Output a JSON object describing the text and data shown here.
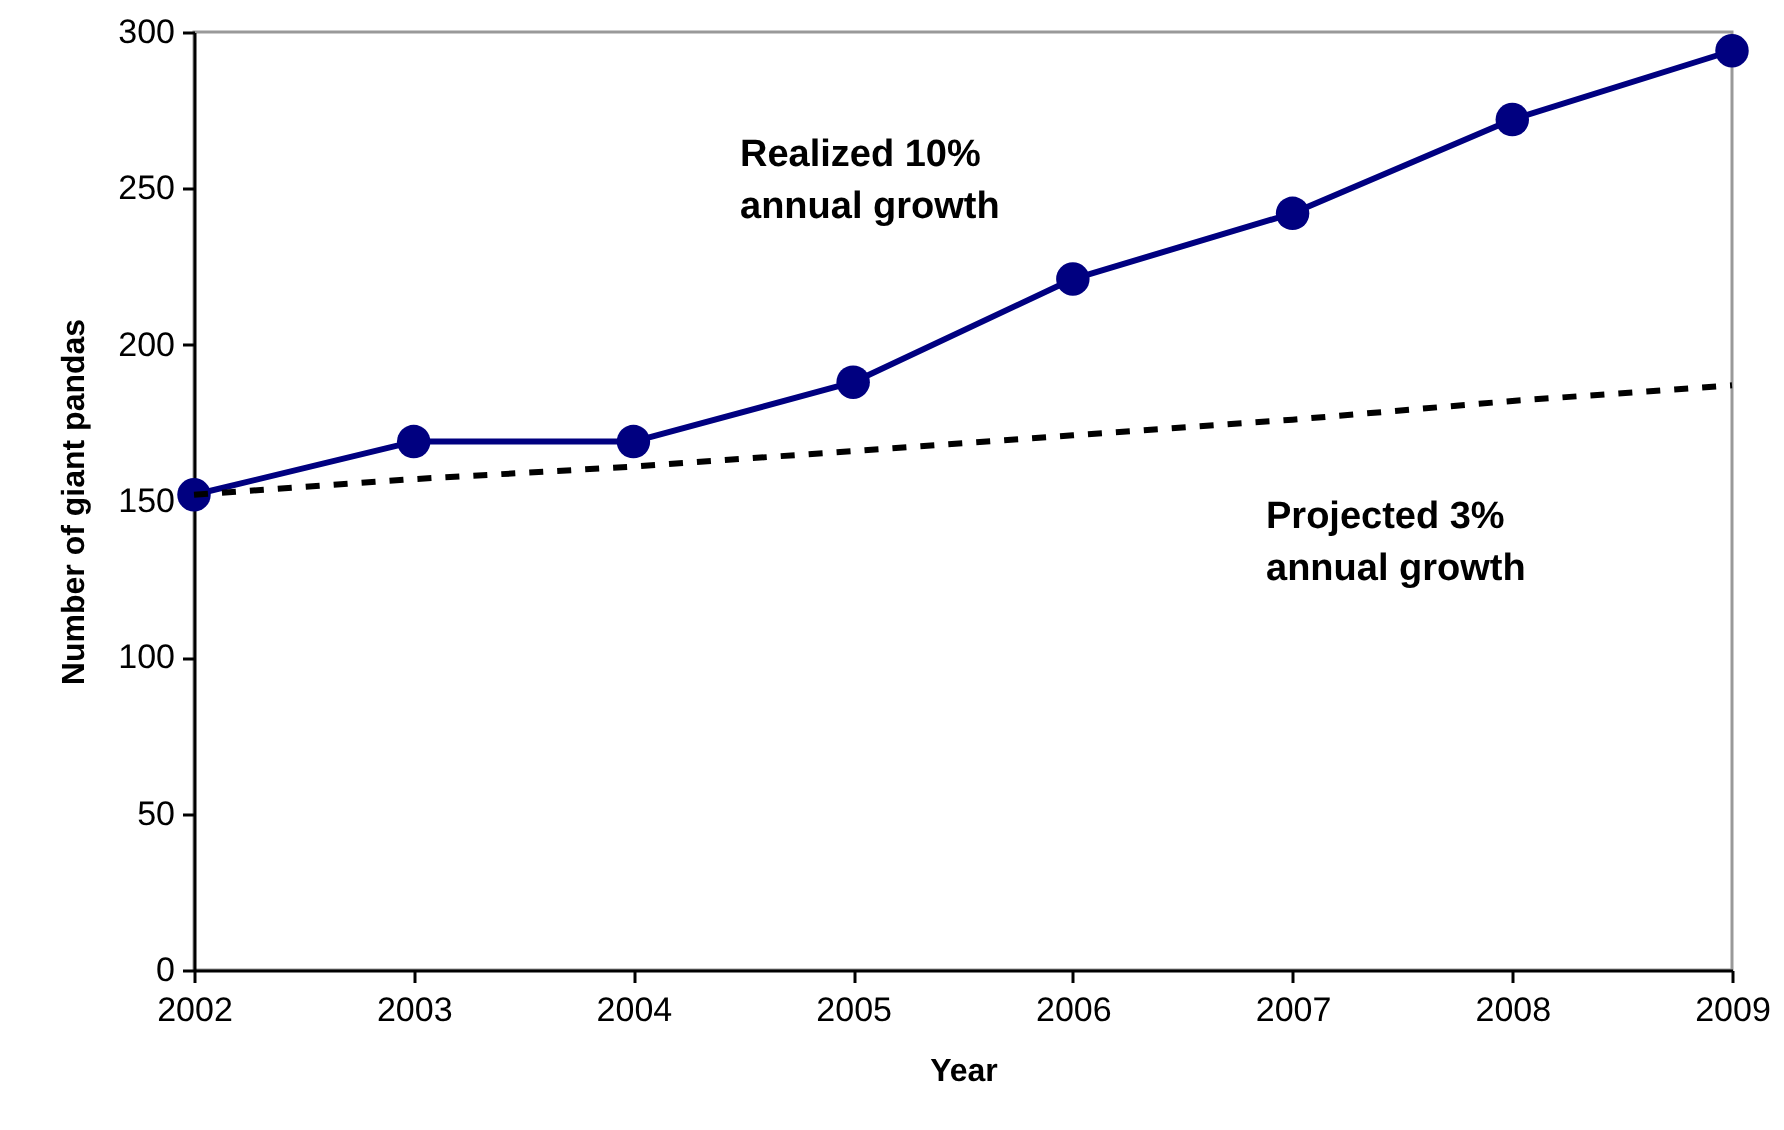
{
  "chart_data": {
    "type": "line",
    "xlabel": "Year",
    "ylabel": "Number of giant pandas",
    "x": [
      2002,
      2003,
      2004,
      2005,
      2006,
      2007,
      2008,
      2009
    ],
    "series": [
      {
        "name": "Realized 10% annual growth",
        "color": "#000080",
        "marker": "circle",
        "line_style": "solid",
        "values": [
          152,
          169,
          169,
          188,
          221,
          242,
          272,
          294
        ]
      },
      {
        "name": "Projected 3% annual growth",
        "color": "#000000",
        "marker": "none",
        "line_style": "dashed",
        "values": [
          152,
          157,
          161,
          166,
          171,
          176,
          182,
          187
        ]
      }
    ],
    "xlim": [
      2002,
      2009
    ],
    "xticks": [
      2002,
      2003,
      2004,
      2005,
      2006,
      2007,
      2008,
      2009
    ],
    "ylim": [
      0,
      300
    ],
    "yticks": [
      0,
      50,
      100,
      150,
      200,
      250,
      300
    ],
    "grid": false
  }
}
